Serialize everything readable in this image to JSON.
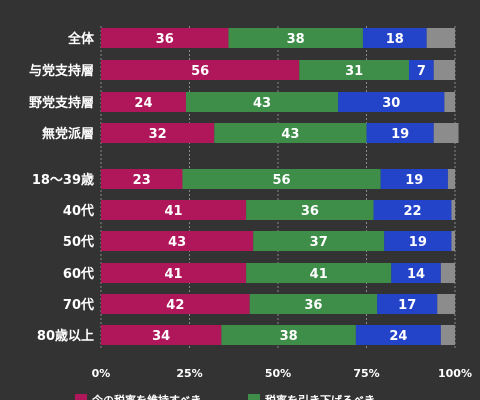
{
  "chart_data": {
    "type": "bar",
    "orientation": "horizontal",
    "stacked": true,
    "categories": [
      "全体",
      "与党支持層",
      "野党支持層",
      "無党派層",
      "18〜39歳",
      "40代",
      "50代",
      "60代",
      "70代",
      "80歳以上"
    ],
    "series": [
      {
        "name": "今の税率を維持すべき",
        "color": "#b0175a",
        "values": [
          36,
          56,
          24,
          32,
          23,
          41,
          43,
          41,
          42,
          34
        ]
      },
      {
        "name": "税率を引き下げるべき",
        "color": "#3e8e4a",
        "values": [
          38,
          31,
          43,
          43,
          56,
          36,
          37,
          41,
          36,
          38
        ]
      },
      {
        "name": "",
        "color": "#2343c9",
        "values": [
          18,
          7,
          30,
          19,
          19,
          22,
          19,
          14,
          17,
          24
        ]
      },
      {
        "name": "",
        "color": "#8c8c8c",
        "values": [
          8,
          6,
          3,
          7,
          2,
          1,
          1,
          4,
          5,
          4
        ]
      }
    ],
    "value_labels_shown_for_series": [
      0,
      1,
      2
    ],
    "xticks": [
      "0%",
      "25%",
      "50%",
      "75%",
      "100%"
    ],
    "xlim": [
      0,
      100
    ],
    "grid": true,
    "legend": "bottom"
  }
}
